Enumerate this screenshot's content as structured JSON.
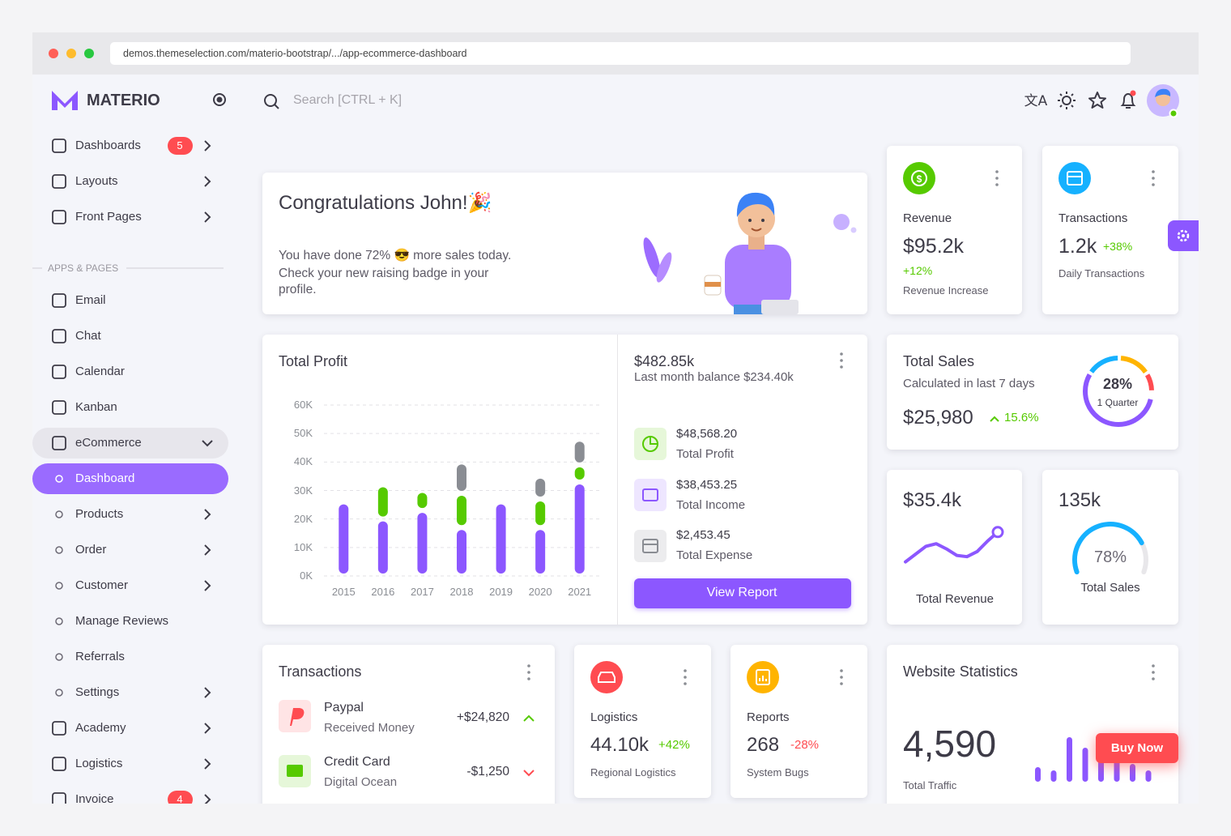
{
  "browser": {
    "url": "demos.themeselection.com/materio-bootstrap/.../app-ecommerce-dashboard"
  },
  "sidebar": {
    "brand": "MATERIO",
    "section": "APPS & PAGES",
    "top": [
      {
        "label": "Dashboards",
        "badge": "5",
        "chevron": true
      },
      {
        "label": "Layouts",
        "chevron": true
      },
      {
        "label": "Front Pages",
        "chevron": true
      }
    ],
    "apps": [
      {
        "label": "Email"
      },
      {
        "label": "Chat"
      },
      {
        "label": "Calendar"
      },
      {
        "label": "Kanban"
      },
      {
        "label": "eCommerce",
        "open": true
      },
      {
        "label": "Dashboard",
        "sub": true,
        "active": true
      },
      {
        "label": "Products",
        "sub": true,
        "chevron": true
      },
      {
        "label": "Order",
        "sub": true,
        "chevron": true
      },
      {
        "label": "Customer",
        "sub": true,
        "chevron": true
      },
      {
        "label": "Manage Reviews",
        "sub": true
      },
      {
        "label": "Referrals",
        "sub": true
      },
      {
        "label": "Settings",
        "sub": true,
        "chevron": true
      },
      {
        "label": "Academy",
        "chevron": true
      },
      {
        "label": "Logistics",
        "chevron": true
      },
      {
        "label": "Invoice",
        "badge": "4",
        "chevron": true
      }
    ]
  },
  "search": "Search [CTRL + K]",
  "congrats": {
    "title": "Congratulations John!🎉",
    "lines": [
      "You have done 72% 😎 more sales today.",
      "Check your new raising badge in your",
      "profile."
    ]
  },
  "revenue": {
    "label": "Revenue",
    "value": "$95.2k",
    "change": "+12%",
    "caption": "Revenue Increase"
  },
  "transactions_card": {
    "label": "Transactions",
    "value": "1.2k",
    "change": "+38%",
    "caption": "Daily Transactions"
  },
  "total_profit": {
    "title": "Total Profit",
    "chart": {
      "type": "bar",
      "stacked": true,
      "categories": [
        "2015",
        "2016",
        "2017",
        "2018",
        "2019",
        "2020",
        "2021"
      ],
      "series": [
        {
          "color": "#8c57ff",
          "values": [
            26000,
            20000,
            23000,
            17000,
            26000,
            17000,
            33000
          ]
        },
        {
          "color": "#56ca00",
          "values": [
            0,
            12000,
            7000,
            12000,
            0,
            10000,
            6000
          ]
        },
        {
          "color": "#8a8d93",
          "values": [
            0,
            0,
            0,
            11000,
            0,
            8000,
            9000
          ]
        }
      ],
      "ylim": [
        0,
        60000
      ],
      "yticks": [
        {
          "value": 0,
          "label": "0K"
        },
        {
          "value": 10000,
          "label": "10K"
        },
        {
          "value": 20000,
          "label": "20K"
        },
        {
          "value": 30000,
          "label": "30K"
        },
        {
          "value": 40000,
          "label": "40K"
        },
        {
          "value": 50000,
          "label": "50K"
        },
        {
          "value": 60000,
          "label": "60K"
        }
      ],
      "grid": true
    },
    "balance": "$482.85k",
    "balance_caption": "Last month balance $234.40k",
    "items": [
      {
        "amount": "$48,568.20",
        "label": "Total Profit"
      },
      {
        "amount": "$38,453.25",
        "label": "Total Income"
      },
      {
        "amount": "$2,453.45",
        "label": "Total Expense"
      }
    ],
    "button": "View Report"
  },
  "total_sales": {
    "title": "Total Sales",
    "subtitle": "Calculated in last 7 days",
    "value": "$25,980",
    "change": "15.6%",
    "ring": {
      "label": "28%",
      "caption": "1 Quarter"
    }
  },
  "total_revenue": {
    "value": "$35.4k",
    "caption": "Total Revenue",
    "trend": {
      "type": "line",
      "values": [
        4,
        10,
        16,
        18,
        14,
        9,
        8,
        12,
        20,
        27
      ],
      "ylim": [
        0,
        30
      ]
    }
  },
  "sales_gauge": {
    "value": "135k",
    "caption": "Total Sales",
    "gauge": {
      "value": 78,
      "label": "78%"
    }
  },
  "transactions": {
    "title": "Transactions",
    "rows": [
      {
        "name": "Paypal",
        "detail": "Received Money",
        "amount": "+$24,820"
      },
      {
        "name": "Credit Card",
        "detail": "Digital Ocean",
        "amount": "-$1,250"
      }
    ]
  },
  "logistics": {
    "label": "Logistics",
    "value": "44.10k",
    "change": "+42%",
    "caption": "Regional Logistics"
  },
  "reports": {
    "label": "Reports",
    "value": "268",
    "change": "-28%",
    "caption": "System Bugs"
  },
  "website_statistics": {
    "title": "Website Statistics",
    "value": "4,590",
    "caption": "Total Traffic",
    "bars": {
      "type": "bar",
      "values": [
        18,
        14,
        55,
        42,
        38,
        30,
        22,
        14
      ],
      "ylim": [
        0,
        60
      ]
    },
    "button": "Buy Now"
  }
}
